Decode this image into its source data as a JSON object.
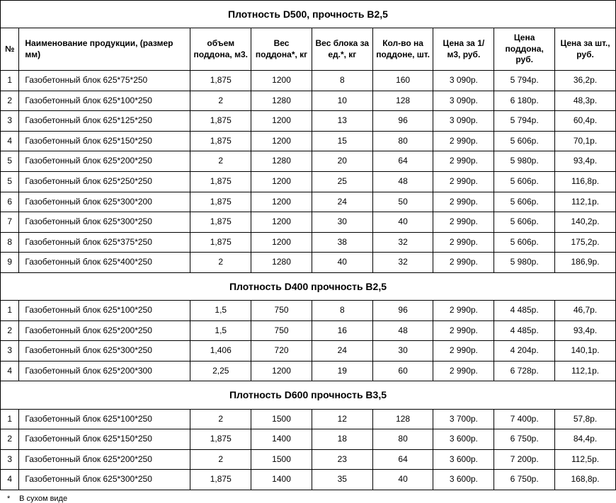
{
  "columns": {
    "num": "№",
    "name": "Наименование продукции, (размер мм)",
    "vol": "объем поддона, м3.",
    "pallet_weight": "Вес поддона*, кг",
    "unit_weight": "Вес блока за ед.*, кг",
    "qty": "Кол-во на поддоне, шт.",
    "price_m3": "Цена за 1/м3, руб.",
    "price_pallet": "Цена поддона, руб.",
    "price_unit": "Цена за шт., руб."
  },
  "sections": [
    {
      "title": "Плотность D500,  прочность В2,5",
      "rows": [
        {
          "num": "1",
          "name": "Газобетонный блок 625*75*250",
          "vol": "1,875",
          "pw": "1200",
          "uw": "8",
          "qty": "160",
          "pm3": "3 090р.",
          "pp": "5 794р.",
          "pu": "36,2р."
        },
        {
          "num": "2",
          "name": "Газобетонный блок 625*100*250",
          "vol": "2",
          "pw": "1280",
          "uw": "10",
          "qty": "128",
          "pm3": "3 090р.",
          "pp": "6 180р.",
          "pu": "48,3р."
        },
        {
          "num": "3",
          "name": "Газобетонный блок 625*125*250",
          "vol": "1,875",
          "pw": "1200",
          "uw": "13",
          "qty": "96",
          "pm3": "3 090р.",
          "pp": "5 794р.",
          "pu": "60,4р."
        },
        {
          "num": "4",
          "name": "Газобетонный блок 625*150*250",
          "vol": "1,875",
          "pw": "1200",
          "uw": "15",
          "qty": "80",
          "pm3": "2 990р.",
          "pp": "5 606р.",
          "pu": "70,1р."
        },
        {
          "num": "5",
          "name": "Газобетонный блок 625*200*250",
          "vol": "2",
          "pw": "1280",
          "uw": "20",
          "qty": "64",
          "pm3": "2 990р.",
          "pp": "5 980р.",
          "pu": "93,4р."
        },
        {
          "num": "5",
          "name": "Газобетонный блок 625*250*250",
          "vol": "1,875",
          "pw": "1200",
          "uw": "25",
          "qty": "48",
          "pm3": "2 990р.",
          "pp": "5 606р.",
          "pu": "116,8р."
        },
        {
          "num": "6",
          "name": "Газобетонный блок 625*300*200",
          "vol": "1,875",
          "pw": "1200",
          "uw": "24",
          "qty": "50",
          "pm3": "2 990р.",
          "pp": "5 606р.",
          "pu": "112,1р."
        },
        {
          "num": "7",
          "name": "Газобетонный блок 625*300*250",
          "vol": "1,875",
          "pw": "1200",
          "uw": "30",
          "qty": "40",
          "pm3": "2 990р.",
          "pp": "5 606р.",
          "pu": "140,2р."
        },
        {
          "num": "8",
          "name": "Газобетонный блок 625*375*250",
          "vol": "1,875",
          "pw": "1200",
          "uw": "38",
          "qty": "32",
          "pm3": "2 990р.",
          "pp": "5 606р.",
          "pu": "175,2р."
        },
        {
          "num": "9",
          "name": "Газобетонный блок 625*400*250",
          "vol": "2",
          "pw": "1280",
          "uw": "40",
          "qty": "32",
          "pm3": "2 990р.",
          "pp": "5 980р.",
          "pu": "186,9р."
        }
      ]
    },
    {
      "title": "Плотность D400  прочность В2,5",
      "rows": [
        {
          "num": "1",
          "name": "Газобетонный блок 625*100*250",
          "vol": "1,5",
          "pw": "750",
          "uw": "8",
          "qty": "96",
          "pm3": "2 990р.",
          "pp": "4 485р.",
          "pu": "46,7р."
        },
        {
          "num": "2",
          "name": "Газобетонный блок 625*200*250",
          "vol": "1,5",
          "pw": "750",
          "uw": "16",
          "qty": "48",
          "pm3": "2 990р.",
          "pp": "4 485р.",
          "pu": "93,4р."
        },
        {
          "num": "3",
          "name": "Газобетонный блок 625*300*250",
          "vol": "1,406",
          "pw": "720",
          "uw": "24",
          "qty": "30",
          "pm3": "2 990р.",
          "pp": "4 204р.",
          "pu": "140,1р."
        },
        {
          "num": "4",
          "name": "Газобетонный блок 625*200*300",
          "vol": "2,25",
          "pw": "1200",
          "uw": "19",
          "qty": "60",
          "pm3": "2 990р.",
          "pp": "6 728р.",
          "pu": "112,1р."
        }
      ]
    },
    {
      "title": "Плотность D600  прочность В3,5",
      "rows": [
        {
          "num": "1",
          "name": "Газобетонный блок 625*100*250",
          "vol": "2",
          "pw": "1500",
          "uw": "12",
          "qty": "128",
          "pm3": "3 700р.",
          "pp": "7 400р.",
          "pu": "57,8р."
        },
        {
          "num": "2",
          "name": "Газобетонный блок 625*150*250",
          "vol": "1,875",
          "pw": "1400",
          "uw": "18",
          "qty": "80",
          "pm3": "3 600р.",
          "pp": "6 750р.",
          "pu": "84,4р."
        },
        {
          "num": "3",
          "name": "Газобетонный блок 625*200*250",
          "vol": "2",
          "pw": "1500",
          "uw": "23",
          "qty": "64",
          "pm3": "3 600р.",
          "pp": "7 200р.",
          "pu": "112,5р."
        },
        {
          "num": "4",
          "name": "Газобетонный блок 625*300*250",
          "vol": "1,875",
          "pw": "1400",
          "uw": "35",
          "qty": "40",
          "pm3": "3 600р.",
          "pp": "6 750р.",
          "pu": "168,8р."
        }
      ]
    }
  ],
  "footnote": "В сухом виде",
  "footnote_marker": "*"
}
